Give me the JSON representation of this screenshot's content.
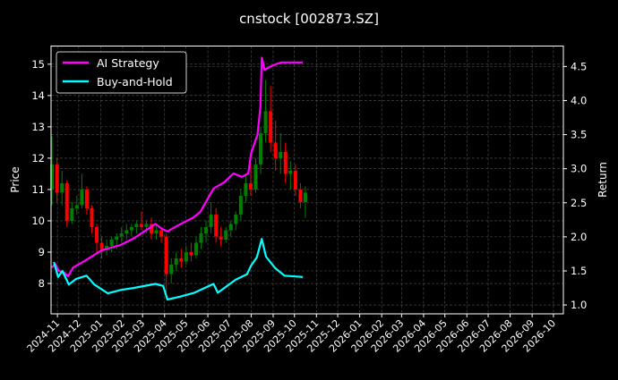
{
  "chart_data": {
    "type": "candlestick+line",
    "title": "cnstock [002873.SZ]",
    "ylabel": "Price",
    "y2label": "Return",
    "xlim": [
      "2024-10-23",
      "2026-10-15"
    ],
    "ylim": [
      7.03,
      15.58
    ],
    "y2lim": [
      0.87,
      4.8
    ],
    "grid": true,
    "legend_placement": "top-left",
    "xticks": [
      "2024-11",
      "2024-12",
      "2025-01",
      "2025-02",
      "2025-03",
      "2025-04",
      "2025-05",
      "2025-06",
      "2025-07",
      "2025-08",
      "2025-09",
      "2025-10",
      "2025-11",
      "2025-12",
      "2026-01",
      "2026-02",
      "2026-03",
      "2026-04",
      "2026-05",
      "2026-06",
      "2026-07",
      "2026-08",
      "2026-09",
      "2026-10"
    ],
    "yticks": [
      8,
      9,
      10,
      11,
      12,
      13,
      14,
      15
    ],
    "y2ticks": [
      "1.0",
      "1.5",
      "2.0",
      "2.5",
      "3.0",
      "3.5",
      "4.0",
      "4.5"
    ],
    "colors": {
      "up": "#008000",
      "down": "#ff0000",
      "strategy": "#ff00ff",
      "buy_hold": "#00ffff",
      "grid": "#555555"
    },
    "ohlc": [
      [
        "2024-10-21",
        11.0,
        12.7,
        10.5,
        11.8
      ],
      [
        "2024-10-28",
        11.8,
        12.0,
        10.6,
        10.9
      ],
      [
        "2024-11-04",
        10.9,
        11.6,
        10.5,
        11.2
      ],
      [
        "2024-11-11",
        11.2,
        11.3,
        9.8,
        10.0
      ],
      [
        "2024-11-18",
        10.0,
        10.6,
        9.9,
        10.4
      ],
      [
        "2024-11-25",
        10.4,
        10.8,
        10.2,
        10.5
      ],
      [
        "2024-12-02",
        10.5,
        11.5,
        10.4,
        11.0
      ],
      [
        "2024-12-09",
        11.0,
        11.1,
        10.2,
        10.4
      ],
      [
        "2024-12-16",
        10.4,
        10.5,
        9.6,
        9.8
      ],
      [
        "2024-12-23",
        9.8,
        9.9,
        9.0,
        9.3
      ],
      [
        "2024-12-30",
        9.3,
        9.5,
        8.8,
        9.1
      ],
      [
        "2025-01-06",
        9.1,
        9.4,
        8.9,
        9.2
      ],
      [
        "2025-01-13",
        9.2,
        9.5,
        9.0,
        9.4
      ],
      [
        "2025-01-20",
        9.4,
        9.6,
        9.1,
        9.5
      ],
      [
        "2025-01-27",
        9.5,
        9.8,
        9.3,
        9.6
      ],
      [
        "2025-02-03",
        9.6,
        9.9,
        9.4,
        9.7
      ],
      [
        "2025-02-10",
        9.7,
        9.9,
        9.5,
        9.8
      ],
      [
        "2025-02-17",
        9.8,
        10.0,
        9.6,
        9.9
      ],
      [
        "2025-02-24",
        9.9,
        10.3,
        9.7,
        9.8
      ],
      [
        "2025-03-03",
        9.8,
        10.0,
        9.6,
        9.9
      ],
      [
        "2025-03-10",
        9.9,
        10.1,
        9.4,
        9.6
      ],
      [
        "2025-03-17",
        9.6,
        9.9,
        9.4,
        9.7
      ],
      [
        "2025-03-24",
        9.7,
        9.8,
        9.3,
        9.5
      ],
      [
        "2025-03-31",
        9.5,
        9.6,
        7.7,
        8.3
      ],
      [
        "2025-04-07",
        8.3,
        8.8,
        8.0,
        8.6
      ],
      [
        "2025-04-14",
        8.6,
        9.0,
        8.4,
        8.8
      ],
      [
        "2025-04-21",
        8.8,
        9.1,
        8.5,
        8.7
      ],
      [
        "2025-04-28",
        8.7,
        9.2,
        8.6,
        9.0
      ],
      [
        "2025-05-05",
        9.0,
        9.3,
        8.7,
        8.9
      ],
      [
        "2025-05-12",
        8.9,
        9.5,
        8.8,
        9.3
      ],
      [
        "2025-05-19",
        9.3,
        9.8,
        9.1,
        9.6
      ],
      [
        "2025-05-26",
        9.6,
        10.0,
        9.3,
        9.8
      ],
      [
        "2025-06-02",
        9.8,
        10.6,
        9.6,
        10.2
      ],
      [
        "2025-06-09",
        10.2,
        10.4,
        9.3,
        9.5
      ],
      [
        "2025-06-16",
        9.5,
        9.8,
        9.2,
        9.4
      ],
      [
        "2025-06-23",
        9.4,
        9.8,
        9.3,
        9.7
      ],
      [
        "2025-06-30",
        9.7,
        10.0,
        9.5,
        9.9
      ],
      [
        "2025-07-07",
        9.9,
        10.3,
        9.7,
        10.2
      ],
      [
        "2025-07-14",
        10.2,
        11.0,
        10.0,
        10.8
      ],
      [
        "2025-07-21",
        10.8,
        11.5,
        10.6,
        11.2
      ],
      [
        "2025-07-28",
        11.2,
        11.8,
        10.8,
        11.0
      ],
      [
        "2025-08-04",
        11.0,
        12.0,
        10.9,
        11.8
      ],
      [
        "2025-08-11",
        11.8,
        13.0,
        11.5,
        12.8
      ],
      [
        "2025-08-18",
        12.8,
        14.5,
        12.5,
        13.5
      ],
      [
        "2025-08-25",
        13.5,
        14.3,
        12.2,
        12.5
      ],
      [
        "2025-09-01",
        12.5,
        13.2,
        11.6,
        12.0
      ],
      [
        "2025-09-08",
        12.0,
        12.8,
        11.5,
        12.2
      ],
      [
        "2025-09-15",
        12.2,
        12.5,
        11.2,
        11.5
      ],
      [
        "2025-09-22",
        11.5,
        11.9,
        11.0,
        11.6
      ],
      [
        "2025-09-29",
        11.6,
        11.8,
        10.8,
        11.0
      ],
      [
        "2025-10-06",
        11.0,
        11.2,
        10.4,
        10.6
      ],
      [
        "2025-10-13",
        10.6,
        11.1,
        10.1,
        10.9
      ]
    ],
    "series": [
      {
        "name": "AI Strategy",
        "axis": "right",
        "points": [
          [
            "2024-10-24",
            1.55
          ],
          [
            "2024-10-29",
            1.6
          ],
          [
            "2024-11-03",
            1.5
          ],
          [
            "2024-11-11",
            1.47
          ],
          [
            "2024-11-16",
            1.42
          ],
          [
            "2024-11-23",
            1.55
          ],
          [
            "2024-12-10",
            1.65
          ],
          [
            "2025-01-02",
            1.8
          ],
          [
            "2025-01-29",
            1.88
          ],
          [
            "2025-02-17",
            1.98
          ],
          [
            "2025-03-19",
            2.19
          ],
          [
            "2025-03-28",
            2.12
          ],
          [
            "2025-04-05",
            2.08
          ],
          [
            "2025-04-22",
            2.18
          ],
          [
            "2025-05-11",
            2.28
          ],
          [
            "2025-05-21",
            2.36
          ],
          [
            "2025-06-09",
            2.71
          ],
          [
            "2025-06-24",
            2.8
          ],
          [
            "2025-07-07",
            2.93
          ],
          [
            "2025-07-19",
            2.88
          ],
          [
            "2025-07-28",
            2.93
          ],
          [
            "2025-08-01",
            3.23
          ],
          [
            "2025-08-10",
            3.5
          ],
          [
            "2025-08-14",
            3.9
          ],
          [
            "2025-08-16",
            4.63
          ],
          [
            "2025-08-20",
            4.45
          ],
          [
            "2025-08-30",
            4.51
          ],
          [
            "2025-09-12",
            4.56
          ],
          [
            "2025-10-13",
            4.56
          ]
        ]
      },
      {
        "name": "Buy-and-Hold",
        "axis": "right",
        "points": [
          [
            "2024-10-27",
            1.63
          ],
          [
            "2024-11-02",
            1.41
          ],
          [
            "2024-11-08",
            1.5
          ],
          [
            "2024-11-17",
            1.3
          ],
          [
            "2024-11-27",
            1.38
          ],
          [
            "2024-12-12",
            1.43
          ],
          [
            "2024-12-23",
            1.3
          ],
          [
            "2025-01-11",
            1.17
          ],
          [
            "2025-01-29",
            1.22
          ],
          [
            "2025-02-17",
            1.25
          ],
          [
            "2025-03-19",
            1.31
          ],
          [
            "2025-03-30",
            1.28
          ],
          [
            "2025-04-05",
            1.08
          ],
          [
            "2025-04-22",
            1.12
          ],
          [
            "2025-05-13",
            1.18
          ],
          [
            "2025-06-09",
            1.31
          ],
          [
            "2025-06-15",
            1.18
          ],
          [
            "2025-07-10",
            1.37
          ],
          [
            "2025-07-26",
            1.45
          ],
          [
            "2025-08-01",
            1.58
          ],
          [
            "2025-08-09",
            1.7
          ],
          [
            "2025-08-16",
            1.97
          ],
          [
            "2025-08-22",
            1.71
          ],
          [
            "2025-09-04",
            1.54
          ],
          [
            "2025-09-17",
            1.43
          ],
          [
            "2025-10-13",
            1.41
          ]
        ]
      }
    ]
  }
}
